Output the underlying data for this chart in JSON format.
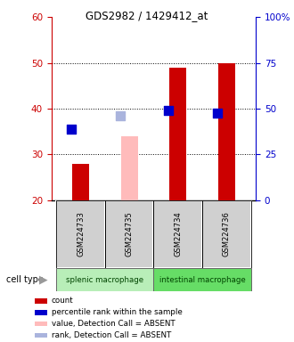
{
  "title": "GDS2982 / 1429412_at",
  "samples": [
    "GSM224733",
    "GSM224735",
    "GSM224734",
    "GSM224736"
  ],
  "cell_types": [
    {
      "label": "splenic macrophage",
      "samples": [
        0,
        1
      ],
      "color": "#b8eeb8"
    },
    {
      "label": "intestinal macrophage",
      "samples": [
        2,
        3
      ],
      "color": "#66dd66"
    }
  ],
  "bar_values": [
    28,
    null,
    49,
    50
  ],
  "bar_color": "#cc0000",
  "absent_bar_values": [
    null,
    34,
    null,
    null
  ],
  "absent_bar_color": "#ffbbbb",
  "rank_dots": [
    35.5,
    null,
    39.5,
    39
  ],
  "rank_dot_color": "#0000cc",
  "absent_rank_dots": [
    null,
    38.5,
    null,
    null
  ],
  "absent_rank_dot_color": "#aab4dd",
  "ylim_left": [
    20,
    60
  ],
  "ylim_right": [
    0,
    100
  ],
  "yticks_left": [
    20,
    30,
    40,
    50,
    60
  ],
  "yticks_right": [
    0,
    25,
    50,
    75,
    100
  ],
  "ytick_labels_right": [
    "0",
    "25",
    "50",
    "75",
    "100%"
  ],
  "left_axis_color": "#cc0000",
  "right_axis_color": "#0000cc",
  "bar_bottom": 20,
  "bar_width": 0.35,
  "dot_size": 45,
  "background_color": "#ffffff",
  "plot_bg_color": "#ffffff",
  "sample_box_color": "#d0d0d0",
  "gridlines": [
    30,
    40,
    50
  ],
  "legend_items": [
    {
      "label": "count",
      "color": "#cc0000"
    },
    {
      "label": "percentile rank within the sample",
      "color": "#0000cc"
    },
    {
      "label": "value, Detection Call = ABSENT",
      "color": "#ffbbbb"
    },
    {
      "label": "rank, Detection Call = ABSENT",
      "color": "#aab4dd"
    }
  ]
}
